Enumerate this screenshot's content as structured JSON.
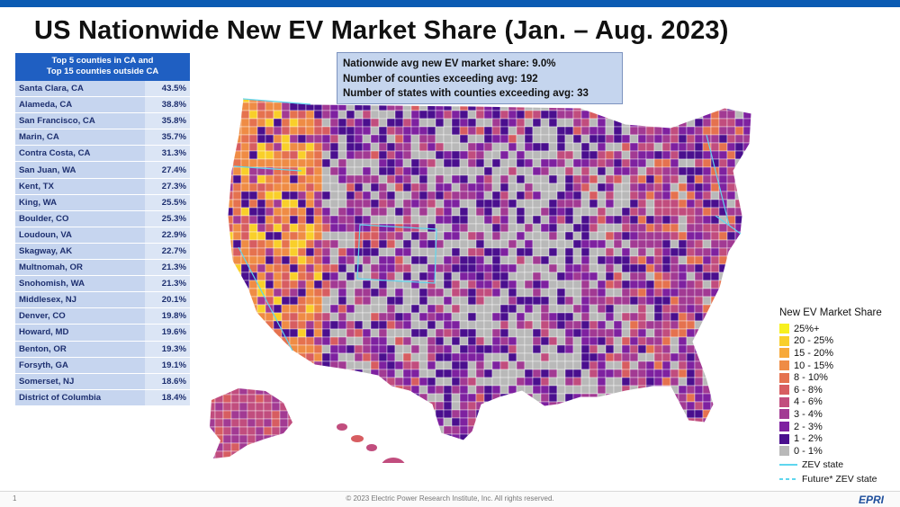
{
  "title": "US Nationwide New EV Market Share (Jan. – Aug. 2023)",
  "table": {
    "header_line1": "Top 5 counties in CA and",
    "header_line2": "Top 15 counties outside CA",
    "rows": [
      {
        "county": "Santa Clara, CA",
        "share": "43.5%"
      },
      {
        "county": "Alameda, CA",
        "share": "38.8%"
      },
      {
        "county": "San Francisco, CA",
        "share": "35.8%"
      },
      {
        "county": "Marin, CA",
        "share": "35.7%"
      },
      {
        "county": "Contra Costa, CA",
        "share": "31.3%"
      },
      {
        "county": "San Juan, WA",
        "share": "27.4%"
      },
      {
        "county": "Kent, TX",
        "share": "27.3%"
      },
      {
        "county": "King, WA",
        "share": "25.5%"
      },
      {
        "county": "Boulder, CO",
        "share": "25.3%"
      },
      {
        "county": "Loudoun, VA",
        "share": "22.9%"
      },
      {
        "county": "Skagway, AK",
        "share": "22.7%"
      },
      {
        "county": "Multnomah, OR",
        "share": "21.3%"
      },
      {
        "county": "Snohomish, WA",
        "share": "21.3%"
      },
      {
        "county": "Middlesex, NJ",
        "share": "20.1%"
      },
      {
        "county": "Denver, CO",
        "share": "19.8%"
      },
      {
        "county": "Howard, MD",
        "share": "19.6%"
      },
      {
        "county": "Benton, OR",
        "share": "19.3%"
      },
      {
        "county": "Forsyth, GA",
        "share": "19.1%"
      },
      {
        "county": "Somerset, NJ",
        "share": "18.6%"
      },
      {
        "county": "District of Columbia",
        "share": "18.4%"
      }
    ]
  },
  "stats": {
    "line1": "Nationwide avg new EV market share: 9.0%",
    "line2": "Number of counties exceeding avg: 192",
    "line3": "Number of states with counties exceeding avg: 33"
  },
  "legend": {
    "title": "New EV Market Share",
    "items": [
      {
        "label": "25%+",
        "color": "#f7f01e"
      },
      {
        "label": "20 - 25%",
        "color": "#f9cf2a"
      },
      {
        "label": "15 - 20%",
        "color": "#f7a93a"
      },
      {
        "label": "10 - 15%",
        "color": "#ef8c45"
      },
      {
        "label": "8 - 10%",
        "color": "#e5724f"
      },
      {
        "label": "6 - 8%",
        "color": "#d75d61"
      },
      {
        "label": "4 - 6%",
        "color": "#c14d7e"
      },
      {
        "label": "3 - 4%",
        "color": "#a23a93"
      },
      {
        "label": "2 - 3%",
        "color": "#7e21a0"
      },
      {
        "label": "1 - 2%",
        "color": "#4a0f8e"
      },
      {
        "label": "0 - 1%",
        "color": "#b9b9b9"
      }
    ],
    "zev_label": "ZEV state",
    "future_zev_label": "Future* ZEV state",
    "zev_color": "#5fd6ee"
  },
  "footer": {
    "page": "1",
    "copyright": "© 2023 Electric Power Research Institute, Inc. All rights reserved.",
    "logo": "EPRI"
  }
}
